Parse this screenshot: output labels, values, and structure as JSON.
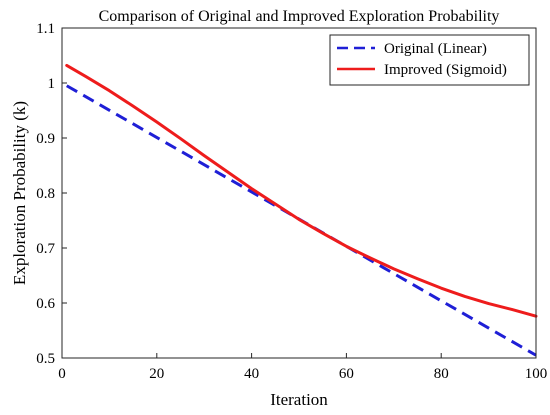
{
  "chart_data": {
    "type": "line",
    "title": "Comparison of Original and Improved Exploration Probability",
    "xlabel": "Iteration",
    "ylabel": "Exploration Probability (k)",
    "xlim": [
      0,
      100
    ],
    "ylim": [
      0.5,
      1.1
    ],
    "xticks": [
      "0",
      "20",
      "40",
      "60",
      "80",
      "100"
    ],
    "yticks": [
      "0.5",
      "0.6",
      "0.7",
      "0.8",
      "0.9",
      "1",
      "1.1"
    ],
    "grid": false,
    "legend_position": "top-right",
    "series": [
      {
        "name": "Original (Linear)",
        "color": "#1f1fd6",
        "style": "dashed",
        "x": [
          1,
          100
        ],
        "y": [
          0.995,
          0.505
        ]
      },
      {
        "name": "Improved (Sigmoid)",
        "color": "#ee1c1c",
        "style": "solid",
        "x": [
          1,
          5,
          10,
          15,
          20,
          25,
          30,
          35,
          40,
          45,
          50,
          55,
          60,
          65,
          70,
          75,
          80,
          85,
          90,
          95,
          100
        ],
        "y": [
          1.032,
          1.012,
          0.986,
          0.958,
          0.929,
          0.899,
          0.868,
          0.838,
          0.808,
          0.78,
          0.752,
          0.727,
          0.703,
          0.682,
          0.662,
          0.644,
          0.627,
          0.612,
          0.599,
          0.588,
          0.576
        ]
      }
    ]
  }
}
